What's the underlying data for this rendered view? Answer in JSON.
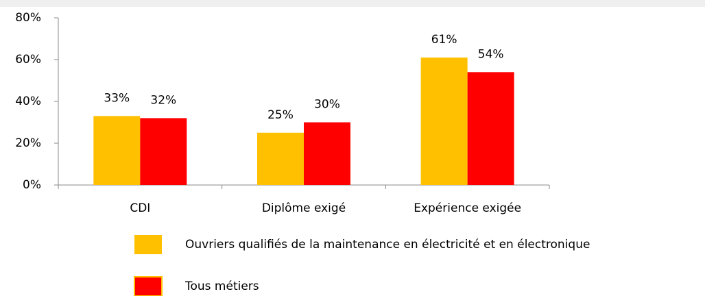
{
  "chart_data": {
    "type": "bar",
    "categories": [
      "CDI",
      "Diplôme exigé",
      "Expérience exigée"
    ],
    "series": [
      {
        "name": "Ouvriers qualifiés de la maintenance en électricité et en électronique",
        "color": "#ffc000",
        "values": [
          33,
          25,
          61
        ],
        "value_labels": [
          "33%",
          "25%",
          "61%"
        ]
      },
      {
        "name": "Tous métiers",
        "color": "#ff0000",
        "values": [
          32,
          30,
          54
        ],
        "value_labels": [
          "32%",
          "30%",
          "54%"
        ]
      }
    ],
    "ylim": [
      0,
      80
    ],
    "yticks": [
      {
        "value": 0,
        "label": "0%"
      },
      {
        "value": 20,
        "label": "20%"
      },
      {
        "value": 40,
        "label": "40%"
      },
      {
        "value": 60,
        "label": "60%"
      },
      {
        "value": 80,
        "label": "80%"
      }
    ],
    "grid": false
  }
}
